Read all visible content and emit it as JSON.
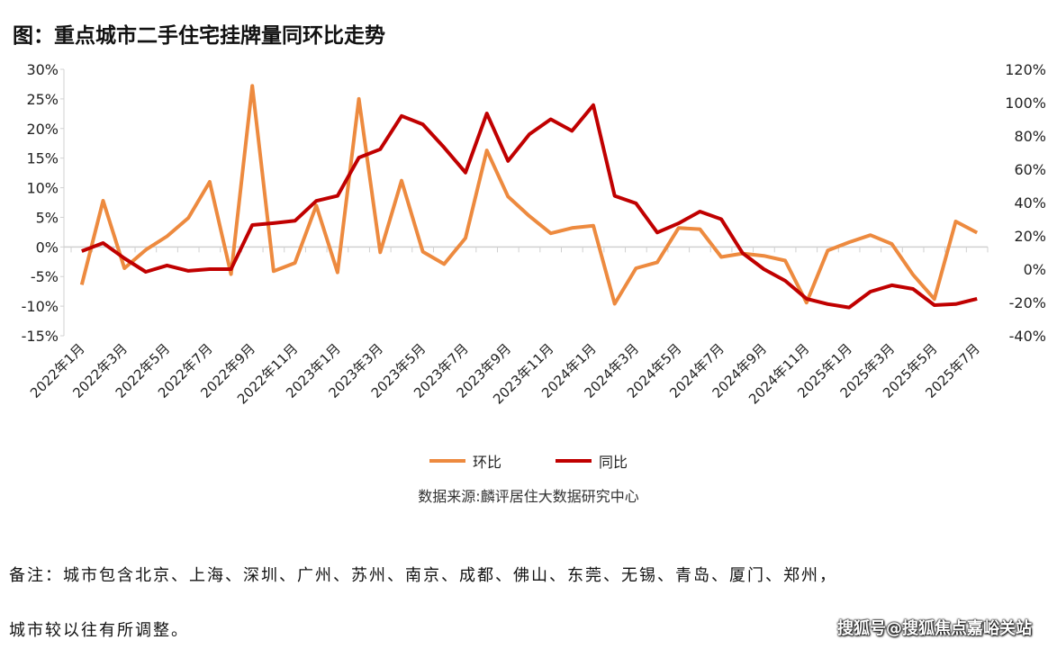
{
  "title": "图：重点城市二手住宅挂牌量同环比走势",
  "chart_data": {
    "type": "line",
    "title": "图：重点城市二手住宅挂牌量同环比走势",
    "categories": [
      "2022年1月",
      "2022年2月",
      "2022年3月",
      "2022年4月",
      "2022年5月",
      "2022年6月",
      "2022年7月",
      "2022年8月",
      "2022年9月",
      "2022年10月",
      "2022年11月",
      "2022年12月",
      "2023年1月",
      "2023年2月",
      "2023年3月",
      "2023年4月",
      "2023年5月",
      "2023年6月",
      "2023年7月",
      "2023年8月",
      "2023年9月",
      "2023年10月",
      "2023年11月",
      "2023年12月",
      "2024年1月",
      "2024年2月",
      "2024年3月",
      "2024年4月",
      "2024年5月",
      "2024年6月",
      "2024年7月",
      "2024年8月",
      "2024年9月",
      "2024年10月",
      "2024年11月",
      "2024年12月",
      "2025年1月",
      "2025年2月",
      "2025年3月",
      "2025年4月",
      "2025年5月",
      "2025年6月",
      "2025年7月"
    ],
    "x_tick_labels": [
      "2022年1月",
      "2022年3月",
      "2022年5月",
      "2022年7月",
      "2022年9月",
      "2022年11月",
      "2023年1月",
      "2023年3月",
      "2023年5月",
      "2023年7月",
      "2023年9月",
      "2023年11月",
      "2024年1月",
      "2024年3月",
      "2024年5月",
      "2024年7月",
      "2024年9月",
      "2024年11月",
      "2025年1月",
      "2025年3月",
      "2025年5月",
      "2025年7月"
    ],
    "left_axis": {
      "ylim": [
        -15,
        30
      ],
      "ticks": [
        "30%",
        "25%",
        "20%",
        "15%",
        "10%",
        "5%",
        "0%",
        "-5%",
        "-10%",
        "-15%"
      ]
    },
    "right_axis": {
      "ylim": [
        -40,
        120
      ],
      "ticks": [
        "120%",
        "100%",
        "80%",
        "60%",
        "40%",
        "20%",
        "0%",
        "-20%",
        "-40%"
      ]
    },
    "series": [
      {
        "name": "环比",
        "axis": "left",
        "color": "#ED8A3F",
        "values": [
          -6.4,
          7.8,
          -3.6,
          -0.5,
          1.8,
          4.9,
          11.0,
          -4.6,
          27.2,
          -4.1,
          -2.7,
          7.0,
          -4.3,
          25.0,
          -0.9,
          11.2,
          -0.8,
          -2.9,
          1.5,
          16.3,
          8.5,
          5.2,
          2.3,
          3.2,
          3.6,
          -9.6,
          -3.6,
          -2.6,
          3.2,
          3.0,
          -1.7,
          -1.1,
          -1.5,
          -2.3,
          -9.4,
          -0.6,
          0.8,
          2.0,
          0.5,
          -4.7,
          -8.8,
          4.3,
          2.4
        ]
      },
      {
        "name": "同比",
        "axis": "right",
        "color": "#C00000",
        "values": [
          10.8,
          15.7,
          6.5,
          -1.6,
          2.2,
          -1.0,
          0,
          0,
          26.5,
          27.6,
          29,
          41,
          44,
          67,
          72,
          92,
          87,
          73,
          58,
          93.5,
          65,
          81,
          90,
          83,
          98.5,
          44,
          39.5,
          22,
          27.5,
          34.6,
          30,
          9.7,
          0,
          -7,
          -17.8,
          -21,
          -23,
          -13.5,
          -9.7,
          -11.9,
          -21.6,
          -21,
          -17.8
        ]
      }
    ],
    "legend_position": "bottom",
    "grid": false
  },
  "source": "数据来源:麟评居住大数据研究中心",
  "note_line1": "备注：城市包含北京、上海、深圳、广州、苏州、南京、成都、佛山、东莞、无锡、青岛、厦门、郑州，",
  "note_line2": "城市较以往有所调整。",
  "watermark": "搜狐号@搜狐焦点嘉峪关站"
}
